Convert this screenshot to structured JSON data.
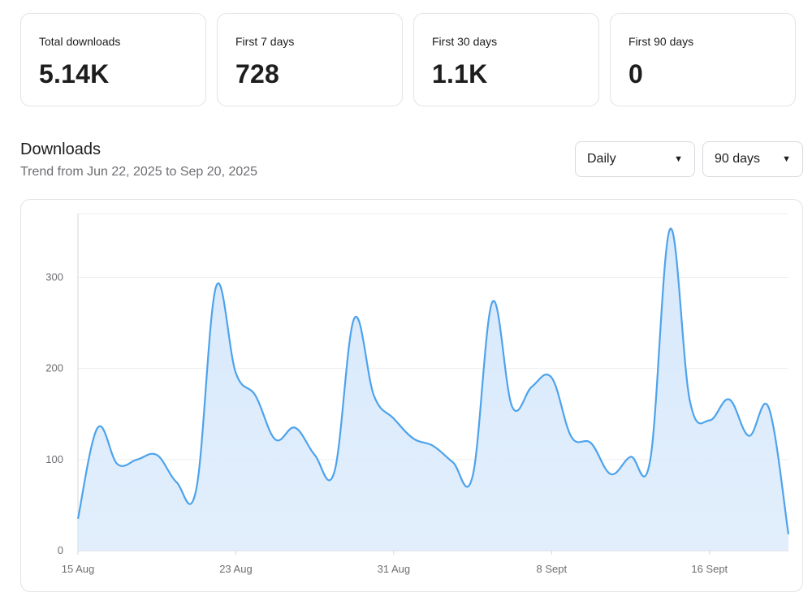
{
  "stats": [
    {
      "label": "Total downloads",
      "value": "5.14K"
    },
    {
      "label": "First 7 days",
      "value": "728"
    },
    {
      "label": "First 30 days",
      "value": "1.1K"
    },
    {
      "label": "First 90 days",
      "value": "0"
    }
  ],
  "section": {
    "title": "Downloads",
    "subtitle": "Trend from Jun 22, 2025 to Sep 20, 2025"
  },
  "controls": {
    "interval": "Daily",
    "range": "90 days",
    "caret_icon": "▼"
  },
  "colors": {
    "line": "#4da3ec",
    "fill": "#d8e9fb"
  },
  "chart_data": {
    "type": "area",
    "title": "Downloads",
    "xlabel": "",
    "ylabel": "",
    "ylim": [
      0,
      370
    ],
    "yticks": [
      0,
      100,
      200,
      300
    ],
    "xtick_labels": [
      "15 Aug",
      "23 Aug",
      "31 Aug",
      "8 Sept",
      "16 Sept"
    ],
    "xtick_day_index": [
      0,
      8,
      16,
      24,
      32
    ],
    "x_days": [
      0,
      1,
      2,
      3,
      4,
      5,
      6,
      7,
      8,
      9,
      10,
      11,
      12,
      13,
      14,
      15,
      16,
      17,
      18,
      19,
      20,
      21,
      22,
      23,
      24,
      25,
      26,
      27,
      28,
      29,
      30,
      31,
      32,
      33,
      34,
      35,
      36
    ],
    "series": [
      {
        "name": "Downloads",
        "values": [
          35,
          135,
          95,
          100,
          105,
          75,
          68,
          290,
          195,
          170,
          122,
          135,
          105,
          87,
          255,
          170,
          145,
          123,
          115,
          97,
          82,
          273,
          158,
          180,
          190,
          125,
          118,
          84,
          103,
          100,
          353,
          165,
          143,
          166,
          126,
          157,
          18
        ]
      }
    ]
  }
}
